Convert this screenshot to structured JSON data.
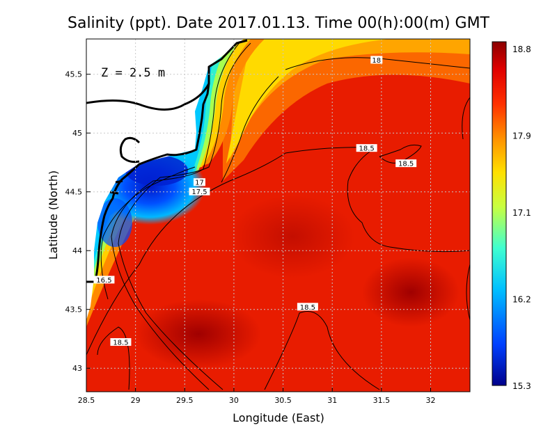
{
  "chart_data": {
    "type": "heatmap",
    "title": "Salinity (ppt). Date 2017.01.13. Time 00(h):00(m) GMT",
    "xlabel": "Longitude (East)",
    "ylabel": "Latitude (North)",
    "annotation": "Z = 2.5 m",
    "xlim": [
      28.5,
      32.4
    ],
    "ylim": [
      42.8,
      45.8
    ],
    "x_ticks": [
      {
        "value": 28.5,
        "label": "28.5"
      },
      {
        "value": 29,
        "label": "29"
      },
      {
        "value": 29.5,
        "label": "29.5"
      },
      {
        "value": 30,
        "label": "30"
      },
      {
        "value": 30.5,
        "label": "30.5"
      },
      {
        "value": 31,
        "label": "31"
      },
      {
        "value": 31.5,
        "label": "31.5"
      },
      {
        "value": 32,
        "label": "32"
      }
    ],
    "y_ticks": [
      {
        "value": 43,
        "label": "43"
      },
      {
        "value": 43.5,
        "label": "43.5"
      },
      {
        "value": 44,
        "label": "44"
      },
      {
        "value": 44.5,
        "label": "44.5"
      },
      {
        "value": 45,
        "label": "45"
      },
      {
        "value": 45.5,
        "label": "45.5"
      }
    ],
    "grid": true,
    "colorbar": {
      "min": 15.3,
      "max": 18.8,
      "ticks": [
        {
          "value": 18.8,
          "label": "18.8"
        },
        {
          "value": 17.9,
          "label": "17.9"
        },
        {
          "value": 17.1,
          "label": "17.1"
        },
        {
          "value": 16.2,
          "label": "16.2"
        },
        {
          "value": 15.3,
          "label": "15.3"
        }
      ],
      "colors": [
        "#00008b",
        "#0050ff",
        "#00c8ff",
        "#40ffc0",
        "#c0ff40",
        "#ffe000",
        "#ff8000",
        "#ff2000",
        "#e00000",
        "#8b0000"
      ]
    },
    "contour_labels": [
      {
        "label": "18",
        "lon": 31.45,
        "lat": 45.62
      },
      {
        "label": "18.5",
        "lon": 31.35,
        "lat": 44.87
      },
      {
        "label": "18.5",
        "lon": 31.75,
        "lat": 44.74
      },
      {
        "label": "18.5",
        "lon": 30.75,
        "lat": 43.52
      },
      {
        "label": "18.5",
        "lon": 28.85,
        "lat": 43.22
      },
      {
        "label": "17",
        "lon": 29.65,
        "lat": 44.58
      },
      {
        "label": "17.5",
        "lon": 29.65,
        "lat": 44.5
      },
      {
        "label": "16.5",
        "lon": 28.68,
        "lat": 43.75
      }
    ],
    "salinity_samples": [
      {
        "lon": 29.2,
        "lat": 44.7,
        "value": 15.3
      },
      {
        "lon": 28.75,
        "lat": 44.3,
        "value": 15.8
      },
      {
        "lon": 28.65,
        "lat": 43.9,
        "value": 16.5
      },
      {
        "lon": 29.6,
        "lat": 45.4,
        "value": 16.8
      },
      {
        "lon": 30.3,
        "lat": 45.5,
        "value": 17.5
      },
      {
        "lon": 31.0,
        "lat": 45.7,
        "value": 18.0
      },
      {
        "lon": 29.4,
        "lat": 43.3,
        "value": 18.7
      },
      {
        "lon": 30.5,
        "lat": 44.0,
        "value": 18.6
      },
      {
        "lon": 31.8,
        "lat": 43.6,
        "value": 18.6
      },
      {
        "lon": 31.0,
        "lat": 45.1,
        "value": 18.2
      }
    ]
  }
}
